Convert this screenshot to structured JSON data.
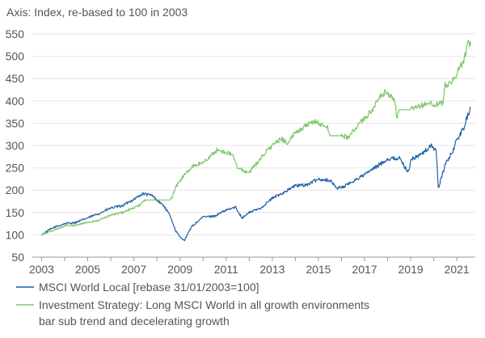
{
  "chart_data": {
    "type": "line",
    "title": "",
    "axis_title": "Axis: Index, re-based to 100 in 2003",
    "xlabel": "",
    "ylabel": "",
    "xlim": [
      2002.6,
      2021.8
    ],
    "ylim": [
      50,
      550
    ],
    "y_ticks": [
      50,
      100,
      150,
      200,
      250,
      300,
      350,
      400,
      450,
      500,
      550
    ],
    "x_ticks": [
      2003,
      2005,
      2007,
      2009,
      2011,
      2013,
      2015,
      2017,
      2019,
      2021
    ],
    "x_tick_labels": [
      "2003",
      "2005",
      "2007",
      "2009",
      "2011",
      "2013",
      "2015",
      "2017",
      "2019",
      "2021"
    ],
    "y_tick_labels": [
      "50",
      "100",
      "150",
      "200",
      "250",
      "300",
      "350",
      "400",
      "450",
      "500",
      "550"
    ],
    "grid": true,
    "legend_position": "bottom-left",
    "series": [
      {
        "name": "MSCI World Local [rebase 31/01/2003=100]",
        "color": "#1f5fa8",
        "x": [
          2003.0,
          2003.3,
          2003.6,
          2004.0,
          2004.5,
          2005.0,
          2005.5,
          2006.0,
          2006.5,
          2007.0,
          2007.4,
          2007.8,
          2008.0,
          2008.3,
          2008.6,
          2008.8,
          2009.0,
          2009.2,
          2009.5,
          2010.0,
          2010.5,
          2011.0,
          2011.4,
          2011.7,
          2012.0,
          2012.5,
          2013.0,
          2013.5,
          2014.0,
          2014.5,
          2015.0,
          2015.5,
          2015.8,
          2016.1,
          2016.5,
          2017.0,
          2017.5,
          2018.0,
          2018.5,
          2018.9,
          2019.0,
          2019.5,
          2019.9,
          2020.1,
          2020.2,
          2020.5,
          2020.8,
          2021.0,
          2021.3,
          2021.5,
          2021.6
        ],
        "values": [
          100,
          110,
          118,
          125,
          128,
          138,
          148,
          160,
          165,
          180,
          192,
          188,
          178,
          165,
          140,
          110,
          95,
          88,
          118,
          140,
          142,
          155,
          162,
          138,
          150,
          160,
          182,
          195,
          210,
          212,
          225,
          222,
          205,
          208,
          220,
          235,
          252,
          270,
          272,
          240,
          268,
          282,
          300,
          290,
          205,
          258,
          285,
          312,
          340,
          372,
          385
        ]
      },
      {
        "name": "Investment Strategy: Long MSCI World in all growth environments bar sub trend and decelerating growth",
        "color": "#7ec66b",
        "x": [
          2003.0,
          2003.3,
          2003.6,
          2004.0,
          2004.5,
          2005.0,
          2005.5,
          2006.0,
          2006.5,
          2007.0,
          2007.3,
          2007.5,
          2008.4,
          2008.6,
          2008.8,
          2009.0,
          2009.3,
          2009.6,
          2010.0,
          2010.3,
          2010.6,
          2011.0,
          2011.3,
          2011.5,
          2011.6,
          2011.9,
          2012.0,
          2012.4,
          2012.7,
          2013.0,
          2013.4,
          2013.7,
          2014.0,
          2014.5,
          2014.9,
          2015.0,
          2015.4,
          2015.5,
          2016.0,
          2016.3,
          2016.7,
          2017.0,
          2017.4,
          2017.7,
          2017.9,
          2018.0,
          2018.3,
          2018.4,
          2018.5,
          2019.0,
          2019.5,
          2019.7,
          2019.8,
          2020.0,
          2020.4,
          2020.5,
          2020.8,
          2021.0,
          2021.3,
          2021.5,
          2021.6
        ],
        "values": [
          100,
          106,
          112,
          120,
          122,
          128,
          133,
          144,
          150,
          160,
          168,
          178,
          178,
          178,
          205,
          222,
          240,
          255,
          262,
          275,
          290,
          285,
          278,
          248,
          248,
          240,
          240,
          265,
          285,
          300,
          315,
          305,
          330,
          345,
          355,
          350,
          340,
          322,
          322,
          318,
          345,
          360,
          385,
          410,
          420,
          412,
          405,
          360,
          380,
          380,
          390,
          395,
          395,
          390,
          395,
          435,
          445,
          460,
          490,
          535,
          525
        ]
      }
    ]
  }
}
